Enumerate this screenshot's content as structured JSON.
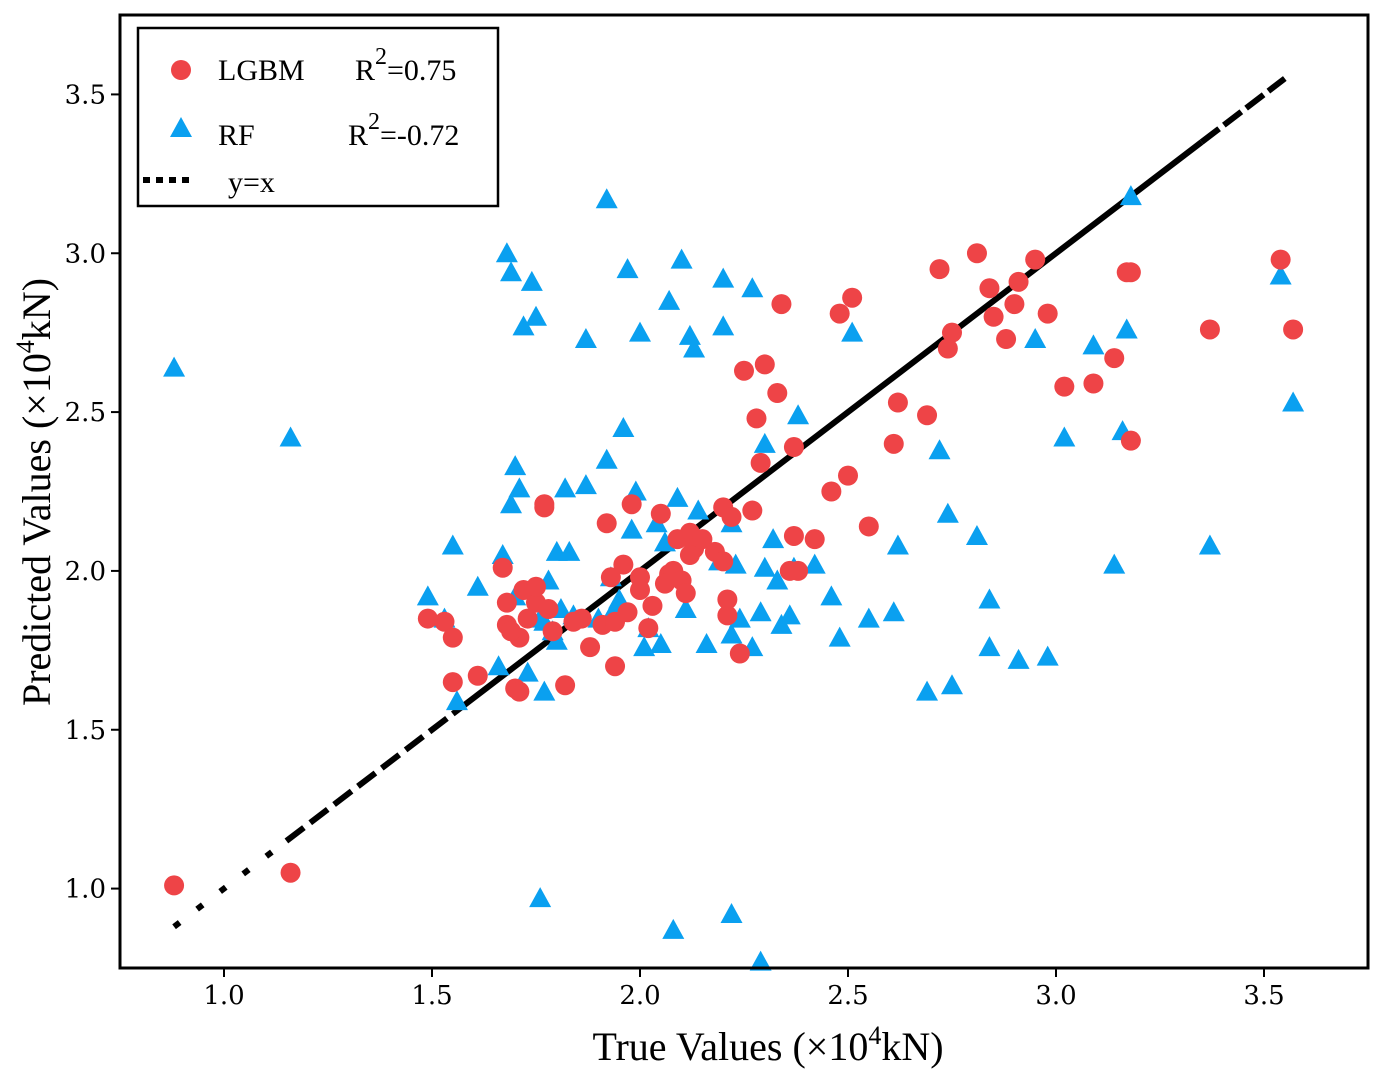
{
  "chart_data": {
    "type": "scatter",
    "xlabel": "True Values  (×10⁴kN)",
    "xlabel_parts": {
      "prefix": "True Values  (×10",
      "exp": "4",
      "suffix": "kN)"
    },
    "ylabel": "Predicted Values (×10⁴kN)",
    "ylabel_parts": {
      "prefix": "Predicted Values (×10",
      "exp": "4",
      "suffix": "kN)"
    },
    "xlim": [
      0.75,
      3.75
    ],
    "ylim": [
      0.75,
      3.75
    ],
    "xticks": [
      "1.0",
      "1.5",
      "2.0",
      "2.5",
      "3.0",
      "3.5"
    ],
    "yticks": [
      "1.0",
      "1.5",
      "2.0",
      "2.5",
      "3.0",
      "3.5"
    ],
    "grid": false,
    "legend_position": "top-left",
    "legend": [
      {
        "label": "LGBM",
        "stat_prefix": "R",
        "stat_exp": "2",
        "stat_suffix": "=0.75",
        "marker": "circle"
      },
      {
        "label": "RF",
        "stat_prefix": "R",
        "stat_exp": "2",
        "stat_suffix": "=-0.72",
        "marker": "triangle"
      },
      {
        "label": "y=x",
        "marker": "dotted-line"
      }
    ],
    "colors": {
      "LGBM": "#EE4447",
      "RF": "#0AA0F0",
      "line": "#000000"
    },
    "reference_line": {
      "name": "y=x",
      "x": [
        0.88,
        3.55
      ],
      "y": [
        0.88,
        3.55
      ]
    },
    "series": [
      {
        "name": "LGBM",
        "x": [
          0.88,
          1.16,
          1.49,
          1.53,
          1.55,
          1.55,
          1.61,
          1.67,
          1.68,
          1.7,
          1.71,
          1.72,
          1.73,
          1.75,
          1.77,
          1.77,
          1.78,
          1.82,
          1.86,
          1.88,
          1.91,
          1.92,
          1.94,
          1.96,
          1.98,
          2.0,
          2.02,
          2.03,
          2.05,
          2.07,
          2.08,
          2.09,
          2.1,
          2.11,
          2.12,
          2.13,
          2.15,
          2.18,
          2.2,
          2.21,
          2.21,
          2.22,
          2.24,
          2.25,
          2.27,
          2.28,
          2.29,
          2.3,
          2.33,
          2.34,
          2.37,
          2.37,
          2.38,
          2.42,
          2.46,
          2.48,
          2.5,
          2.51,
          2.55,
          2.61,
          2.62,
          2.69,
          2.72,
          2.74,
          2.75,
          2.81,
          2.84,
          2.85,
          2.88,
          2.9,
          2.91,
          2.95,
          2.98,
          3.02,
          3.09,
          3.14,
          3.17,
          3.18,
          3.18,
          3.37,
          3.54,
          3.57,
          1.68,
          1.71,
          1.75,
          1.79,
          1.84,
          1.93,
          1.97,
          2.06,
          2.12,
          2.0,
          1.69,
          1.94,
          2.2,
          2.36
        ],
        "y": [
          1.01,
          1.05,
          1.85,
          1.84,
          1.65,
          1.79,
          1.67,
          2.01,
          1.83,
          1.63,
          1.79,
          1.94,
          1.85,
          1.9,
          2.2,
          2.21,
          1.88,
          1.64,
          1.85,
          1.76,
          1.83,
          2.15,
          1.7,
          2.02,
          2.21,
          1.98,
          1.82,
          1.89,
          2.18,
          1.99,
          2.0,
          2.1,
          1.97,
          1.93,
          2.12,
          2.07,
          2.1,
          2.06,
          2.2,
          1.86,
          1.91,
          2.17,
          1.74,
          2.63,
          2.19,
          2.48,
          2.34,
          2.65,
          2.56,
          2.84,
          2.39,
          2.11,
          2.0,
          2.1,
          2.25,
          2.81,
          2.3,
          2.86,
          2.14,
          2.4,
          2.53,
          2.49,
          2.95,
          2.7,
          2.75,
          3.0,
          2.89,
          2.8,
          2.73,
          2.84,
          2.91,
          2.98,
          2.81,
          2.58,
          2.59,
          2.67,
          2.94,
          2.94,
          2.41,
          2.76,
          2.98,
          2.76,
          1.9,
          1.62,
          1.95,
          1.81,
          1.84,
          1.98,
          1.87,
          1.96,
          2.05,
          1.94,
          1.81,
          1.84,
          2.03,
          2.0
        ]
      },
      {
        "name": "RF",
        "x": [
          0.88,
          1.16,
          1.49,
          1.53,
          1.55,
          1.56,
          1.61,
          1.66,
          1.67,
          1.68,
          1.69,
          1.69,
          1.7,
          1.7,
          1.71,
          1.72,
          1.73,
          1.74,
          1.75,
          1.76,
          1.77,
          1.78,
          1.79,
          1.8,
          1.81,
          1.82,
          1.83,
          1.84,
          1.87,
          1.87,
          1.9,
          1.92,
          1.92,
          1.93,
          1.95,
          1.96,
          1.97,
          1.98,
          1.99,
          2.0,
          2.02,
          2.04,
          2.05,
          2.06,
          2.07,
          2.09,
          2.1,
          2.11,
          2.12,
          2.13,
          2.14,
          2.16,
          2.19,
          2.2,
          2.2,
          2.22,
          2.22,
          2.23,
          2.24,
          2.27,
          2.27,
          2.29,
          2.3,
          2.3,
          2.32,
          2.33,
          2.34,
          2.36,
          2.37,
          2.38,
          2.42,
          2.46,
          2.48,
          2.51,
          2.55,
          2.61,
          2.62,
          2.69,
          2.72,
          2.74,
          2.75,
          2.81,
          2.84,
          2.84,
          2.91,
          2.95,
          2.98,
          3.02,
          3.09,
          3.14,
          3.16,
          3.17,
          3.18,
          3.37,
          3.54,
          3.57,
          2.08,
          2.22,
          1.76,
          2.29,
          1.77,
          1.8,
          1.93,
          1.94,
          2.01
        ],
        "y": [
          2.64,
          2.42,
          1.92,
          1.85,
          2.08,
          1.59,
          1.95,
          1.7,
          2.05,
          3.0,
          2.94,
          2.21,
          2.33,
          1.92,
          2.26,
          2.77,
          1.68,
          2.91,
          2.8,
          1.85,
          1.84,
          1.97,
          1.81,
          2.06,
          1.88,
          2.26,
          2.06,
          1.86,
          2.27,
          2.73,
          1.85,
          3.17,
          2.35,
          1.98,
          1.91,
          2.45,
          2.95,
          2.13,
          2.25,
          2.75,
          1.82,
          2.15,
          1.77,
          2.09,
          2.85,
          2.23,
          2.98,
          1.88,
          2.74,
          2.7,
          2.19,
          1.77,
          2.03,
          2.92,
          2.77,
          2.15,
          1.8,
          2.02,
          1.85,
          2.89,
          1.76,
          1.87,
          2.4,
          2.01,
          2.1,
          1.97,
          1.83,
          1.86,
          2.01,
          2.49,
          2.02,
          1.92,
          1.79,
          2.75,
          1.85,
          1.87,
          2.08,
          1.62,
          2.38,
          2.18,
          1.64,
          2.11,
          1.76,
          1.91,
          1.72,
          2.73,
          1.73,
          2.42,
          2.71,
          2.02,
          2.44,
          2.76,
          3.18,
          2.08,
          2.93,
          2.53,
          0.87,
          0.92,
          0.97,
          0.77,
          1.62,
          1.78,
          1.86,
          1.88,
          1.76
        ]
      }
    ]
  }
}
